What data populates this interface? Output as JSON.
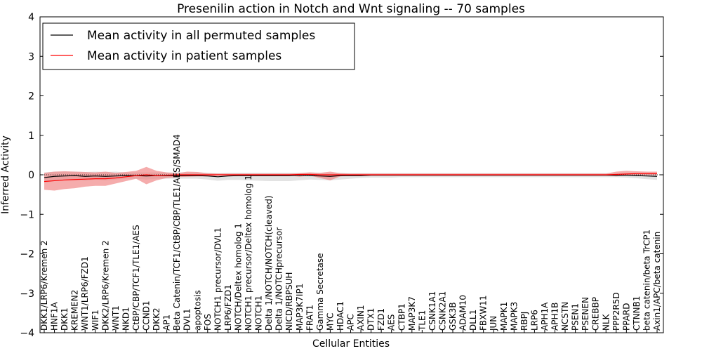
{
  "chart_data": {
    "type": "line",
    "title": "Presenilin action in Notch and Wnt signaling -- 70 samples",
    "xlabel": "Cellular Entities",
    "ylabel": "Inferred Activity",
    "ylim": [
      -4,
      4
    ],
    "yticks": [
      4,
      3,
      2,
      1,
      0,
      -1,
      -2,
      -3,
      -4
    ],
    "ytick_labels": [
      "4",
      "3",
      "2",
      "1",
      "0",
      "−1",
      "−2",
      "−3",
      "−4"
    ],
    "grid": false,
    "legend_position": "top-left",
    "categories": [
      "DKK1/LRP6/Kremen 2",
      "HNF1A",
      "DKK1",
      "KREMEN2",
      "WNT1/LRP6/FZD1",
      "WIF1",
      "DKK2/LRP6/Kremen 2",
      "WNT1",
      "NKD1",
      "CtBP/CBP/TCF1/TLE1/AES",
      "CCND1",
      "DKK2",
      "AP1",
      "Beta Catenin/TCF1/CtBP/CBP/TLE1/AES/SMAD4",
      "DVL1",
      "apoptosis",
      "FOS",
      "NOTCH1 precursor/DVL1",
      "LRP6/FZD1",
      "NOTCH/Deltex homolog 1",
      "NOTCH1 precursor/Deltex homolog 1",
      "NOTCH1",
      "Delta 1/NOTCH/NOTCH(cleaved)",
      "Delta 1/NOTCHprecursor",
      "NICD/RBPSUH",
      "MAP3K7IP1",
      "FRAT1",
      "Gamma Secretase",
      "MYC",
      "HDAC1",
      "APC",
      "AXIN1",
      "DTX1",
      "FZD1",
      "AES",
      "CTBP1",
      "MAP3K7",
      "TLE1",
      "CSNK1A1",
      "CSNK2A1",
      "GSK3B",
      "ADAM10",
      "DLL1",
      "FBXW11",
      "JUN",
      "MAPK1",
      "MAPK3",
      "RBPJ",
      "LRP6",
      "APH1A",
      "APH1B",
      "NCSTN",
      "PSEN1",
      "PSENEN",
      "CREBBP",
      "NLK",
      "PPP2R5D",
      "PPARD",
      "CTNNB1",
      "beta catenin/beta TrCP1",
      "Axin1/APC/beta catenin"
    ],
    "series": [
      {
        "name": "Mean activity in all permuted samples",
        "color": "#000000",
        "band_color": "#c0c0c0",
        "values": [
          -0.07,
          -0.04,
          -0.03,
          -0.02,
          -0.04,
          -0.03,
          -0.04,
          -0.03,
          -0.02,
          -0.02,
          -0.03,
          -0.02,
          -0.02,
          -0.02,
          -0.02,
          -0.02,
          -0.03,
          -0.05,
          -0.03,
          -0.02,
          -0.02,
          -0.02,
          -0.02,
          -0.02,
          -0.02,
          -0.01,
          -0.02,
          -0.03,
          -0.04,
          -0.02,
          -0.02,
          -0.02,
          -0.01,
          -0.01,
          -0.01,
          -0.01,
          -0.01,
          -0.01,
          -0.01,
          -0.01,
          -0.01,
          -0.01,
          -0.01,
          -0.01,
          -0.01,
          -0.01,
          -0.01,
          -0.01,
          -0.01,
          -0.01,
          -0.01,
          -0.01,
          -0.01,
          -0.01,
          -0.01,
          -0.01,
          -0.01,
          -0.01,
          -0.02,
          -0.03,
          -0.04
        ],
        "lower": [
          -0.2,
          -0.16,
          -0.14,
          -0.12,
          -0.15,
          -0.12,
          -0.14,
          -0.12,
          -0.1,
          -0.1,
          -0.12,
          -0.1,
          -0.1,
          -0.1,
          -0.1,
          -0.1,
          -0.12,
          -0.15,
          -0.13,
          -0.13,
          -0.14,
          -0.15,
          -0.16,
          -0.16,
          -0.16,
          -0.14,
          -0.12,
          -0.13,
          -0.14,
          -0.12,
          -0.1,
          -0.08,
          -0.07,
          -0.07,
          -0.07,
          -0.06,
          -0.06,
          -0.06,
          -0.06,
          -0.06,
          -0.06,
          -0.06,
          -0.06,
          -0.06,
          -0.06,
          -0.06,
          -0.06,
          -0.06,
          -0.06,
          -0.06,
          -0.06,
          -0.06,
          -0.06,
          -0.06,
          -0.06,
          -0.06,
          -0.06,
          -0.07,
          -0.09,
          -0.11,
          -0.13
        ],
        "upper": [
          0.06,
          0.08,
          0.08,
          0.08,
          0.07,
          0.08,
          0.07,
          0.08,
          0.06,
          0.06,
          0.06,
          0.06,
          0.06,
          0.06,
          0.06,
          0.06,
          0.05,
          0.04,
          0.05,
          0.05,
          0.05,
          0.05,
          0.05,
          0.05,
          0.05,
          0.05,
          0.06,
          0.05,
          0.04,
          0.05,
          0.04,
          0.04,
          0.04,
          0.04,
          0.04,
          0.04,
          0.04,
          0.04,
          0.04,
          0.04,
          0.04,
          0.04,
          0.04,
          0.04,
          0.04,
          0.04,
          0.04,
          0.04,
          0.04,
          0.04,
          0.04,
          0.04,
          0.04,
          0.04,
          0.04,
          0.04,
          0.04,
          0.04,
          0.04,
          0.04,
          0.04
        ]
      },
      {
        "name": "Mean activity in patient samples",
        "color": "#ff0000",
        "band_color": "#f08080",
        "values": [
          -0.17,
          -0.15,
          -0.13,
          -0.12,
          -0.11,
          -0.1,
          -0.1,
          -0.08,
          -0.05,
          -0.02,
          0.0,
          -0.02,
          -0.01,
          0.0,
          0.0,
          0.0,
          0.0,
          0.0,
          0.0,
          0.0,
          0.0,
          0.0,
          0.0,
          0.0,
          0.0,
          0.01,
          0.01,
          0.0,
          0.0,
          0.0,
          0.0,
          0.0,
          0.0,
          0.0,
          0.0,
          0.0,
          0.0,
          0.0,
          0.0,
          0.0,
          0.0,
          0.0,
          0.0,
          0.0,
          0.0,
          0.0,
          0.0,
          0.0,
          0.0,
          0.0,
          0.0,
          0.0,
          0.0,
          0.0,
          0.0,
          0.0,
          0.01,
          0.02,
          0.03,
          0.03,
          0.03
        ],
        "lower": [
          -0.38,
          -0.4,
          -0.36,
          -0.34,
          -0.3,
          -0.28,
          -0.28,
          -0.22,
          -0.16,
          -0.1,
          -0.24,
          -0.14,
          -0.08,
          -0.06,
          -0.05,
          -0.04,
          -0.04,
          -0.02,
          -0.02,
          -0.02,
          -0.02,
          -0.02,
          -0.02,
          -0.02,
          -0.02,
          -0.05,
          -0.02,
          -0.08,
          -0.14,
          -0.04,
          -0.02,
          -0.02,
          -0.02,
          -0.02,
          -0.02,
          -0.02,
          -0.02,
          -0.02,
          -0.02,
          -0.02,
          -0.02,
          -0.02,
          -0.02,
          -0.02,
          -0.02,
          -0.02,
          -0.02,
          -0.02,
          -0.02,
          -0.02,
          -0.02,
          -0.02,
          -0.02,
          -0.02,
          -0.02,
          -0.02,
          -0.04,
          -0.02,
          -0.01,
          -0.01,
          -0.01
        ],
        "upper": [
          0.05,
          0.08,
          0.09,
          0.08,
          0.07,
          0.06,
          0.08,
          0.05,
          0.07,
          0.1,
          0.2,
          0.1,
          0.06,
          0.04,
          0.08,
          0.07,
          0.04,
          0.03,
          0.03,
          0.03,
          0.03,
          0.03,
          0.03,
          0.03,
          0.03,
          0.04,
          0.06,
          0.05,
          0.08,
          0.04,
          0.03,
          0.03,
          0.03,
          0.03,
          0.03,
          0.03,
          0.03,
          0.03,
          0.03,
          0.03,
          0.03,
          0.03,
          0.03,
          0.03,
          0.03,
          0.03,
          0.03,
          0.03,
          0.03,
          0.03,
          0.03,
          0.03,
          0.03,
          0.03,
          0.03,
          0.03,
          0.08,
          0.1,
          0.09,
          0.08,
          0.08
        ]
      }
    ]
  }
}
